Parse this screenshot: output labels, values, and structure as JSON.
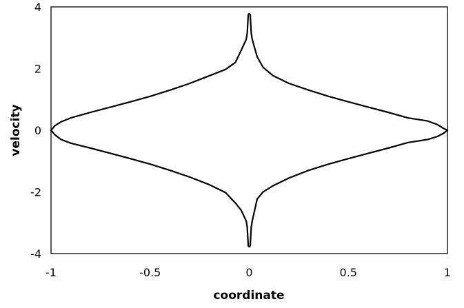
{
  "chart_data": {
    "type": "line",
    "xlabel": "coordinate",
    "ylabel": "velocity",
    "xlim": [
      -1,
      1
    ],
    "ylim": [
      -4,
      4
    ],
    "xticks": [
      "-1",
      "-0.5",
      "0",
      "0.5",
      "1"
    ],
    "xtick_values": [
      -1,
      -0.5,
      0,
      0.5,
      1
    ],
    "yticks": [
      "-4",
      "-2",
      "0",
      "2",
      "4"
    ],
    "ytick_values": [
      -4,
      -2,
      0,
      2,
      4
    ],
    "grid": false,
    "legend": "none",
    "line_color": "#000000",
    "series": [
      {
        "x": [
          -1.0,
          -0.98,
          -0.95,
          -0.9,
          -0.8,
          -0.7,
          -0.6,
          -0.5,
          -0.4,
          -0.3,
          -0.2,
          -0.12,
          -0.07,
          -0.04,
          -0.015,
          -0.01,
          -0.005,
          0.0,
          0.005,
          0.01,
          0.015,
          0.04,
          0.07,
          0.12,
          0.2,
          0.3,
          0.4,
          0.5,
          0.6,
          0.7,
          0.8,
          0.9,
          0.95,
          0.98,
          1.0
        ],
        "y": [
          0.0,
          0.15,
          0.27,
          0.4,
          0.58,
          0.75,
          0.92,
          1.1,
          1.3,
          1.52,
          1.77,
          1.97,
          2.2,
          2.6,
          2.95,
          3.15,
          3.75,
          3.78,
          3.75,
          3.15,
          2.95,
          2.38,
          2.04,
          1.77,
          1.52,
          1.3,
          1.1,
          0.92,
          0.75,
          0.58,
          0.4,
          0.3,
          0.18,
          0.06,
          0.0
        ]
      },
      {
        "x": [
          -1.0,
          -0.98,
          -0.95,
          -0.9,
          -0.8,
          -0.7,
          -0.6,
          -0.5,
          -0.4,
          -0.3,
          -0.2,
          -0.12,
          -0.07,
          -0.04,
          -0.015,
          -0.01,
          -0.005,
          0.0,
          0.005,
          0.01,
          0.015,
          0.04,
          0.07,
          0.12,
          0.2,
          0.3,
          0.4,
          0.5,
          0.6,
          0.7,
          0.8,
          0.9,
          0.95,
          0.98,
          1.0
        ],
        "y": [
          0.0,
          -0.15,
          -0.3,
          -0.42,
          -0.58,
          -0.75,
          -0.92,
          -1.1,
          -1.3,
          -1.52,
          -1.77,
          -2.02,
          -2.36,
          -2.6,
          -2.95,
          -3.15,
          -3.75,
          -3.78,
          -3.75,
          -3.15,
          -2.95,
          -2.23,
          -2.0,
          -1.8,
          -1.55,
          -1.3,
          -1.1,
          -0.92,
          -0.75,
          -0.58,
          -0.4,
          -0.3,
          -0.2,
          -0.1,
          0.0
        ]
      }
    ]
  }
}
